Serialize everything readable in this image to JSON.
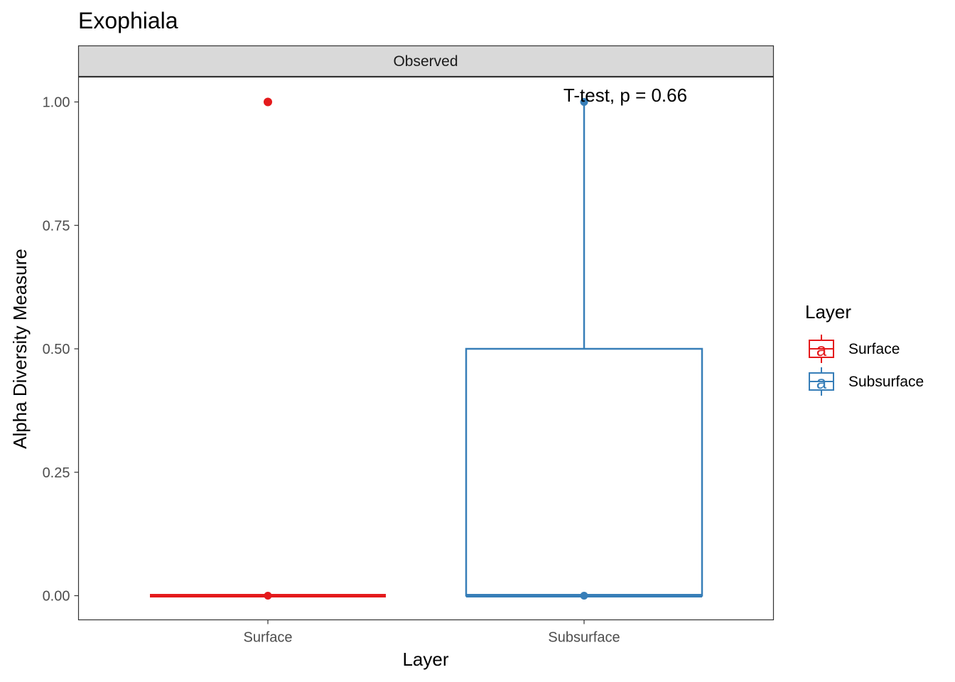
{
  "chart_data": {
    "type": "box",
    "title": "Exophiala",
    "facet": "Observed",
    "xlabel": "Layer",
    "ylabel": "Alpha Diversity Measure",
    "categories": [
      "Surface",
      "Subsurface"
    ],
    "ylim": [
      -0.05,
      1.05
    ],
    "yticks": [
      0,
      0.25,
      0.5,
      0.75,
      1.0
    ],
    "ytick_labels": [
      "0.00",
      "0.25",
      "0.50",
      "0.75",
      "1.00"
    ],
    "boxes": [
      {
        "name": "Surface",
        "min": 0,
        "q1": 0,
        "median": 0,
        "q3": 0,
        "max": 0,
        "outliers": [
          1.0
        ],
        "points": [
          0,
          1.0
        ],
        "color": "#e41a1c"
      },
      {
        "name": "Subsurface",
        "min": 0,
        "q1": 0,
        "median": 0,
        "q3": 0.5,
        "max": 1.0,
        "outliers": [],
        "points": [
          0,
          1.0
        ],
        "color": "#377eb8"
      }
    ],
    "annotation": "T-test, p = 0.66",
    "legend": {
      "title": "Layer",
      "position": "right",
      "key_glyph": "a",
      "entries": [
        {
          "label": "Surface",
          "color": "#e41a1c"
        },
        {
          "label": "Subsurface",
          "color": "#377eb8"
        }
      ]
    },
    "grid": false
  }
}
